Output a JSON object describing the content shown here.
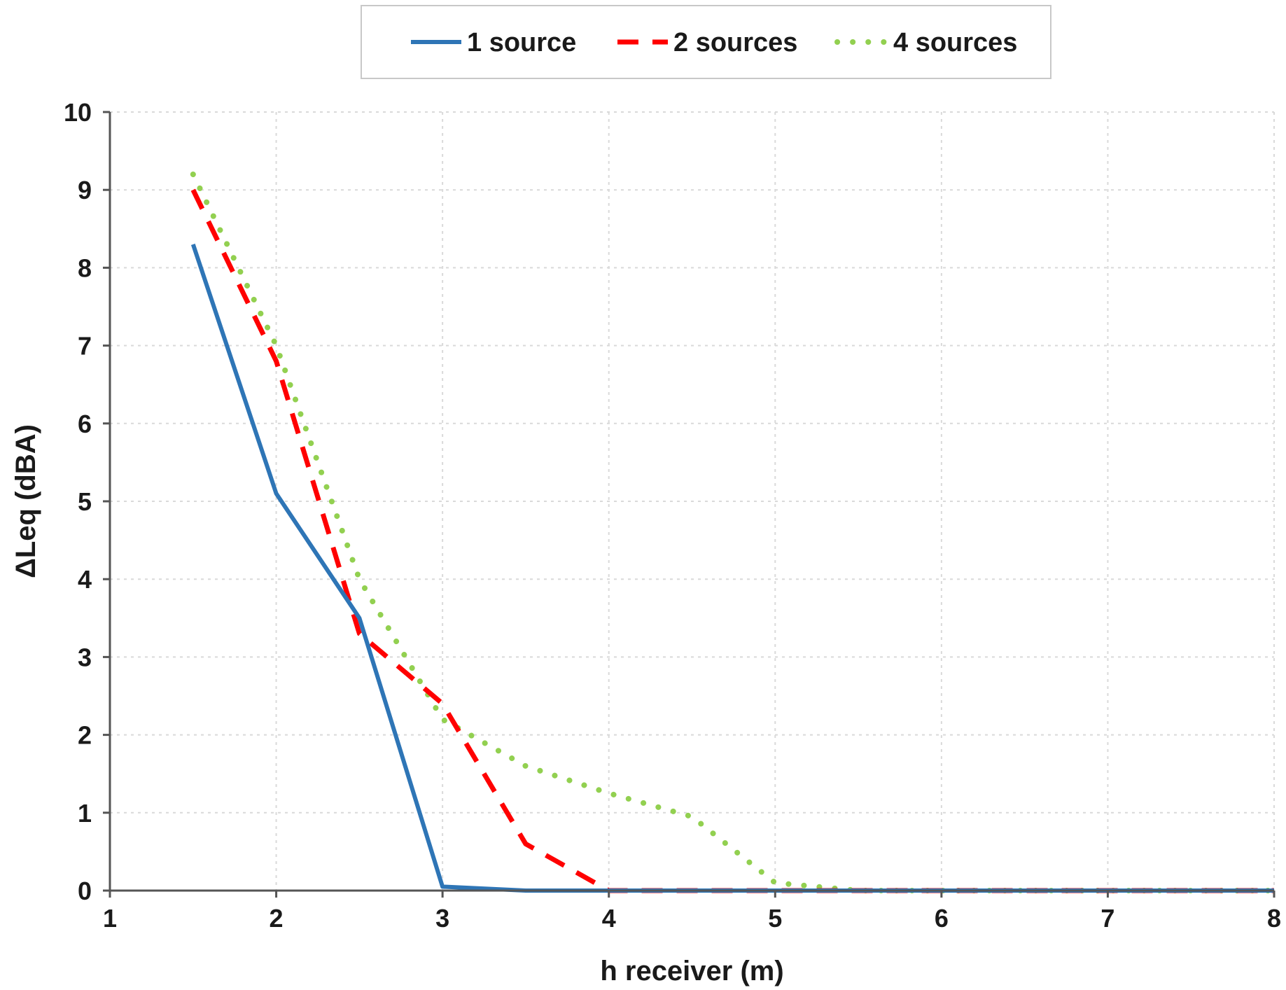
{
  "chart_data": {
    "type": "line",
    "xlabel": "h receiver (m)",
    "ylabel": "ΔLeq (dBA)",
    "xlim": [
      1,
      8
    ],
    "ylim": [
      0,
      10
    ],
    "x_ticks": [
      "1",
      "2",
      "3",
      "4",
      "5",
      "6",
      "7",
      "8"
    ],
    "y_ticks": [
      "0",
      "1",
      "2",
      "3",
      "4",
      "5",
      "6",
      "7",
      "8",
      "9",
      "10"
    ],
    "grid": true,
    "legend_position": "top-center",
    "series": [
      {
        "name": "1 source",
        "color": "#2e75b6",
        "style": "solid",
        "x": [
          1.5,
          2,
          2.5,
          3,
          3.5,
          4,
          4.5,
          5,
          5.5,
          6,
          6.5,
          7,
          7.5,
          8
        ],
        "y": [
          8.3,
          5.1,
          3.5,
          0.05,
          0.0,
          0.0,
          0.0,
          0.0,
          0.0,
          0.0,
          0.0,
          0.0,
          0.0,
          0.0
        ]
      },
      {
        "name": "2 sources",
        "color": "#ff0000",
        "style": "dashed",
        "x": [
          1.5,
          2,
          2.5,
          3,
          3.5,
          4,
          4.5,
          5,
          5.5,
          6,
          6.5,
          7,
          7.5,
          8
        ],
        "y": [
          9.0,
          6.8,
          3.3,
          2.4,
          0.6,
          0.0,
          0.0,
          0.0,
          0.0,
          0.0,
          0.0,
          0.0,
          0.0,
          0.0
        ]
      },
      {
        "name": "4 sources",
        "color": "#92d050",
        "style": "dotted",
        "x": [
          1.5,
          2,
          2.5,
          3,
          3.5,
          4,
          4.5,
          5,
          5.5,
          6,
          6.5,
          7,
          7.5,
          8
        ],
        "y": [
          9.2,
          7.0,
          4.0,
          2.2,
          1.6,
          1.25,
          0.95,
          0.1,
          0.0,
          0.0,
          0.0,
          0.0,
          0.0,
          0.0
        ]
      }
    ]
  }
}
